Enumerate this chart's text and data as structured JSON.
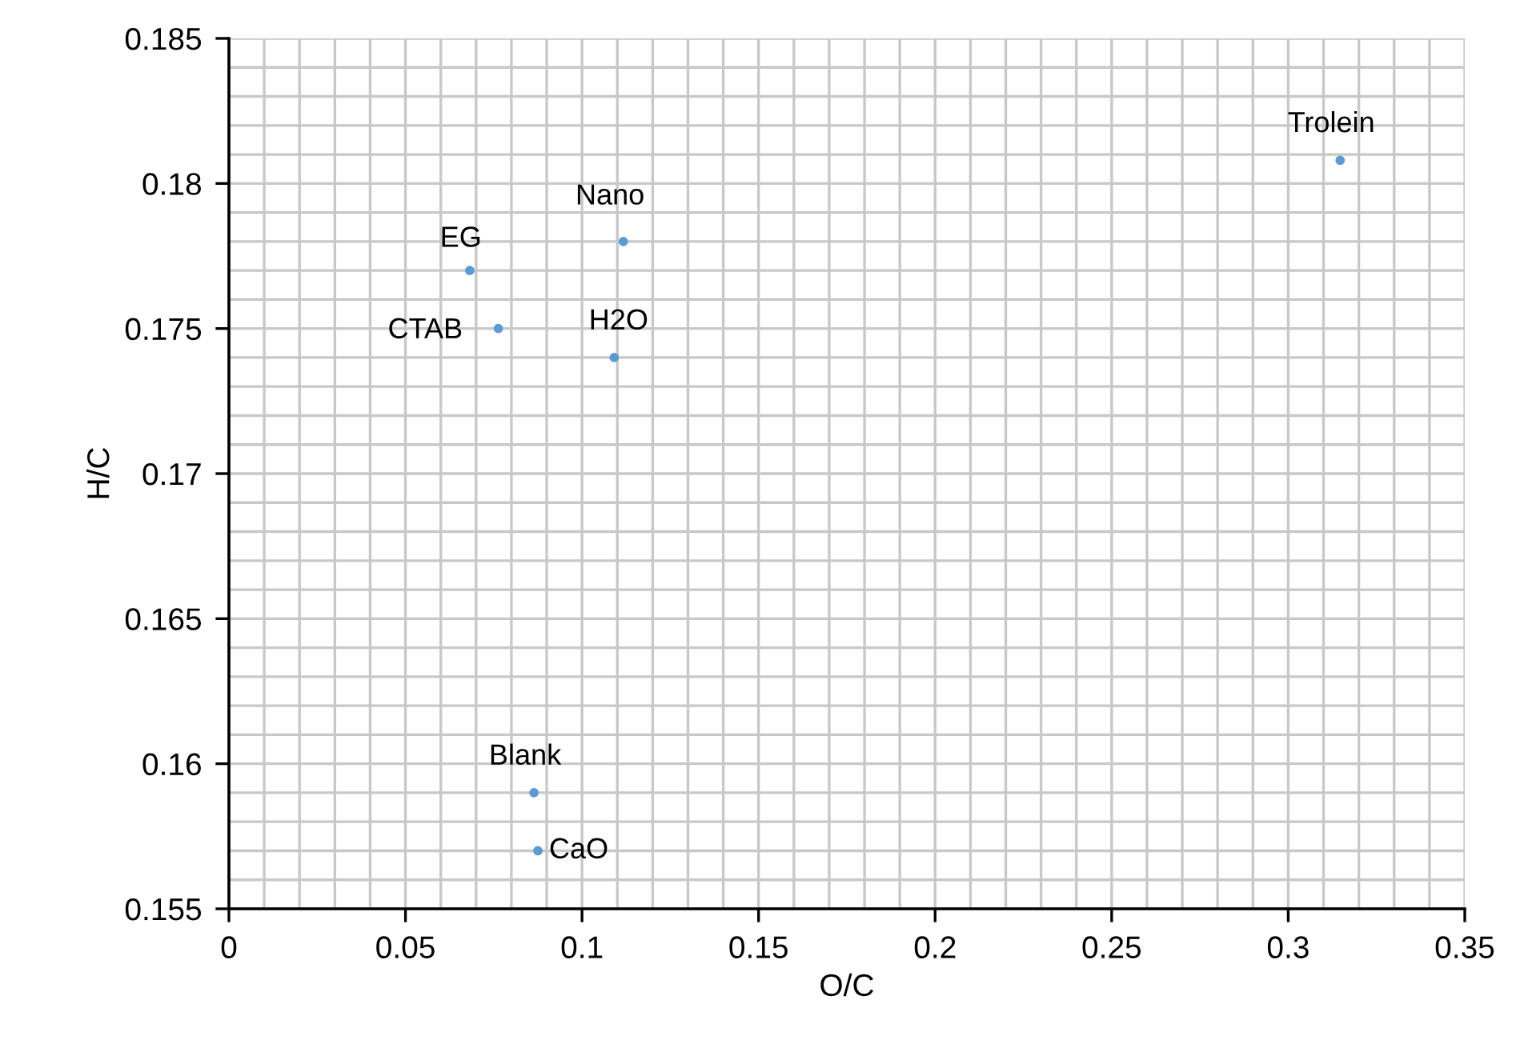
{
  "chart_data": {
    "type": "scatter",
    "xlabel": "O/C",
    "ylabel": "H/C",
    "x": [
      0.0682,
      0.1117,
      0.0763,
      0.1091,
      0.0864,
      0.0875,
      0.3147
    ],
    "series": [
      {
        "color": "#5b9bd5",
        "values": [
          0.177,
          0.178,
          0.175,
          0.174,
          0.159,
          0.157,
          0.1808
        ]
      }
    ],
    "marker": "circle",
    "annotations": [
      {
        "text": "EG",
        "x": 0.0682,
        "y": 0.177
      },
      {
        "text": "Nano",
        "x": 0.1117,
        "y": 0.178
      },
      {
        "text": "CTAB",
        "x": 0.0763,
        "y": 0.175
      },
      {
        "text": "H2O",
        "x": 0.1091,
        "y": 0.174
      },
      {
        "text": "Blank",
        "x": 0.0864,
        "y": 0.159
      },
      {
        "text": "CaO",
        "x": 0.0875,
        "y": 0.157
      },
      {
        "text": "Trolein",
        "x": 0.3147,
        "y": 0.1808
      }
    ],
    "xlim": [
      0,
      0.35
    ],
    "xticks": [
      0,
      0.05,
      0.1,
      0.15,
      0.2,
      0.25,
      0.3,
      0.35
    ],
    "ylim": [
      0.155,
      0.185
    ],
    "yticks": [
      0.155,
      0.16,
      0.165,
      0.17,
      0.175,
      0.18,
      0.185
    ],
    "grid": true,
    "legend": false
  }
}
